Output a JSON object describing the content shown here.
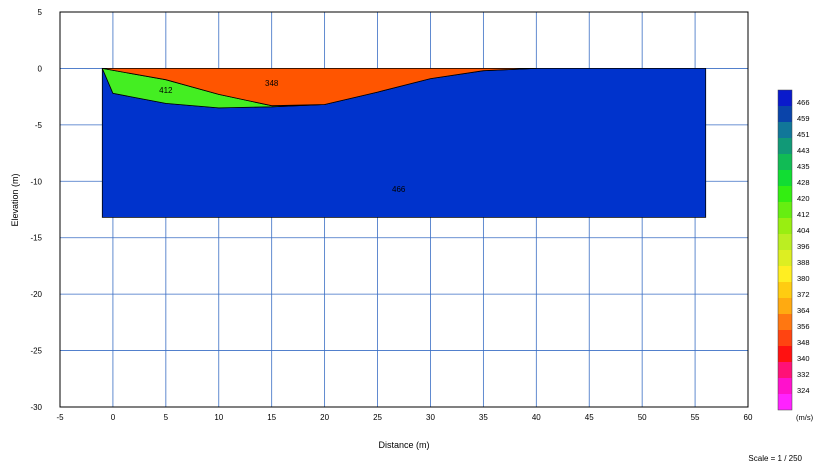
{
  "chart_data": {
    "type": "area",
    "xlabel": "Distance (m)",
    "ylabel": "Elevation (m)",
    "xlim": [
      -5,
      60
    ],
    "ylim": [
      -30,
      5
    ],
    "x_ticks": [
      -5,
      0,
      5,
      10,
      15,
      20,
      25,
      30,
      35,
      40,
      45,
      50,
      55,
      60
    ],
    "y_ticks": [
      5,
      0,
      -5,
      -10,
      -15,
      -20,
      -25,
      -30
    ],
    "grid": true,
    "surface": [
      [
        -1,
        0
      ],
      [
        56,
        0
      ]
    ],
    "layers": [
      {
        "label": "348",
        "velocity": 348,
        "color": "#ff5500",
        "label_at": [
          15,
          -1.3
        ],
        "polygon": [
          [
            -1,
            0
          ],
          [
            40,
            0
          ],
          [
            35,
            -0.2
          ],
          [
            30,
            -0.9
          ],
          [
            25,
            -2.1
          ],
          [
            20,
            -3.2
          ],
          [
            15,
            -3.3
          ],
          [
            10,
            -2.3
          ],
          [
            5,
            -1.0
          ],
          [
            -1,
            0
          ]
        ]
      },
      {
        "label": "412",
        "velocity": 412,
        "color": "#44ee22",
        "label_at": [
          5,
          -1.9
        ],
        "polygon": [
          [
            -1,
            0
          ],
          [
            5,
            -1.0
          ],
          [
            10,
            -2.3
          ],
          [
            15,
            -3.3
          ],
          [
            20,
            -3.2
          ],
          [
            15,
            -3.4
          ],
          [
            10,
            -3.5
          ],
          [
            5,
            -3.1
          ],
          [
            0,
            -2.2
          ],
          [
            -1,
            0
          ]
        ]
      },
      {
        "label": "466",
        "velocity": 466,
        "color": "#0033cc",
        "label_at": [
          27,
          -10.7
        ],
        "polygon": [
          [
            -1,
            0
          ],
          [
            0,
            -2.2
          ],
          [
            5,
            -3.1
          ],
          [
            10,
            -3.5
          ],
          [
            15,
            -3.4
          ],
          [
            20,
            -3.2
          ],
          [
            25,
            -2.1
          ],
          [
            30,
            -0.9
          ],
          [
            35,
            -0.2
          ],
          [
            40,
            0
          ],
          [
            56,
            0
          ],
          [
            56,
            -13.2
          ],
          [
            -1,
            -13.2
          ],
          [
            -1,
            0
          ]
        ]
      }
    ],
    "colorbar": {
      "unit": "(m/s)",
      "entries": [
        {
          "value": "466",
          "color": "#0a1acc"
        },
        {
          "value": "459",
          "color": "#0a44aa"
        },
        {
          "value": "451",
          "color": "#117799"
        },
        {
          "value": "443",
          "color": "#119977"
        },
        {
          "value": "435",
          "color": "#11bb55"
        },
        {
          "value": "428",
          "color": "#11dd33"
        },
        {
          "value": "420",
          "color": "#33ee11"
        },
        {
          "value": "412",
          "color": "#66ee11"
        },
        {
          "value": "404",
          "color": "#99ee11"
        },
        {
          "value": "396",
          "color": "#bbee22"
        },
        {
          "value": "388",
          "color": "#ddee22"
        },
        {
          "value": "380",
          "color": "#ffee22"
        },
        {
          "value": "372",
          "color": "#ffcc11"
        },
        {
          "value": "364",
          "color": "#ffaa11"
        },
        {
          "value": "356",
          "color": "#ff7711"
        },
        {
          "value": "348",
          "color": "#ff4411"
        },
        {
          "value": "340",
          "color": "#ff1111"
        },
        {
          "value": "332",
          "color": "#ff1177"
        },
        {
          "value": "324",
          "color": "#ff11cc"
        },
        {
          "value": "",
          "color": "#ff22ff"
        }
      ]
    },
    "scale_text": "Scale = 1 / 250"
  }
}
